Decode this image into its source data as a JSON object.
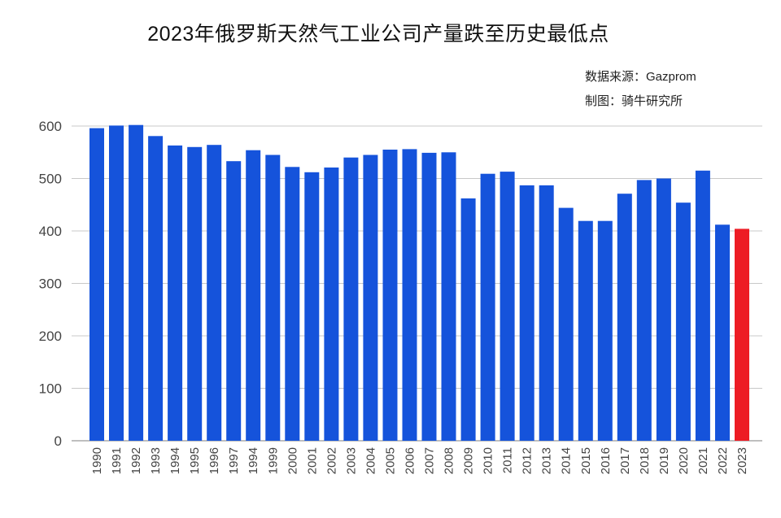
{
  "title": "2023年俄罗斯天然气工业公司产量跌至历史最低点",
  "source": "数据来源：Gazprom",
  "credit": "制图：骑牛研究所",
  "colors": {
    "bar": "#1553DB",
    "highlight": "#ED1C24",
    "grid": "#c8c8c8",
    "axis": "#999999"
  },
  "chart_data": {
    "type": "bar",
    "title": "2023年俄罗斯天然气工业公司产量跌至历史最低点",
    "xlabel": "",
    "ylabel": "",
    "ylim": [
      0,
      600
    ],
    "yticks": [
      0,
      100,
      200,
      300,
      400,
      500,
      600
    ],
    "grid": true,
    "highlight_category": "2023",
    "categories": [
      "1990",
      "1991",
      "1992",
      "1993",
      "1994",
      "1995",
      "1996",
      "1997",
      "1994",
      "1999",
      "2000",
      "2001",
      "2002",
      "2003",
      "2004",
      "2005",
      "2006",
      "2007",
      "2008",
      "2009",
      "2010",
      "2011",
      "2012",
      "2013",
      "2014",
      "2015",
      "2016",
      "2017",
      "2018",
      "2019",
      "2020",
      "2021",
      "2022",
      "2023"
    ],
    "values": [
      596,
      601,
      602,
      581,
      563,
      560,
      564,
      533,
      554,
      545,
      522,
      512,
      521,
      540,
      545,
      555,
      556,
      549,
      550,
      462,
      509,
      513,
      487,
      487,
      444,
      419,
      419,
      471,
      497,
      500,
      454,
      515,
      412,
      404
    ]
  }
}
